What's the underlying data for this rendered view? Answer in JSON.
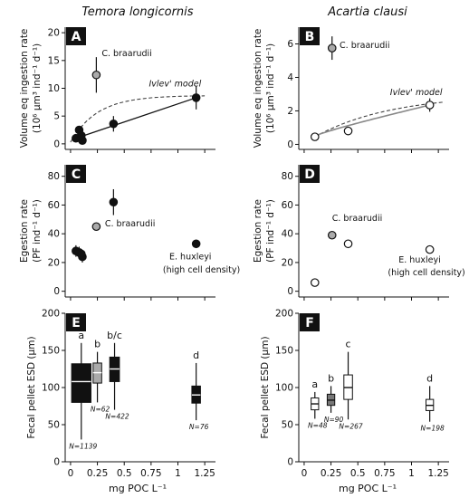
{
  "columns": [
    {
      "title": "Temora longicornis"
    },
    {
      "title": "Acartia clausi"
    }
  ],
  "x_axis": {
    "label": "mg POC L⁻¹",
    "ticks": [
      0,
      0.25,
      0.5,
      0.75,
      1.0,
      1.25
    ],
    "tick_labels": [
      "0",
      "0.25",
      "0.5",
      "0.75",
      "1",
      "1.25"
    ],
    "xlim": [
      -0.05,
      1.35
    ]
  },
  "chart_data": [
    {
      "panel": "A",
      "type": "scatter",
      "ylabel_1": "Volume eq ingestion rate",
      "ylabel_2": "(10⁶ µm³ ind⁻¹ d⁻¹)",
      "ylim": [
        -1,
        21
      ],
      "yticks": [
        0,
        5,
        10,
        15,
        20
      ],
      "points": [
        {
          "x": 0.05,
          "y": 1.0,
          "err": 0,
          "fill": "#111111"
        },
        {
          "x": 0.08,
          "y": 2.5,
          "err": 0.6,
          "fill": "#111111"
        },
        {
          "x": 0.11,
          "y": 0.6,
          "err": 0,
          "fill": "#111111"
        },
        {
          "x": 0.1,
          "y": 1.5,
          "err": 0,
          "fill": "#111111"
        },
        {
          "x": 0.4,
          "y": 3.6,
          "err": 1.4,
          "fill": "#111111"
        },
        {
          "x": 1.17,
          "y": 8.3,
          "err": 2.1,
          "fill": "#111111"
        },
        {
          "x": 0.24,
          "y": 12.4,
          "err": 3.2,
          "fill": "#aaaaaa"
        }
      ],
      "fit_line": [
        [
          0.05,
          1.0
        ],
        [
          1.17,
          8.3
        ]
      ],
      "model_curve": {
        "type": "ivlev",
        "a": 8.7,
        "k": 4.0,
        "x0": 0.0,
        "x1": 1.25,
        "y0": 0.3
      },
      "annotations": [
        {
          "text": "C. braarudii",
          "x": 0.29,
          "y": 15.8,
          "italic": false
        },
        {
          "text": "Ivlev' model",
          "x": 0.73,
          "y": 10.3,
          "italic": true
        }
      ]
    },
    {
      "panel": "B",
      "type": "scatter",
      "ylabel_1": "Volume eq ingestion rate",
      "ylabel_2": "(10⁶ µm³ ind⁻¹ d⁻¹)",
      "ylim": [
        -0.3,
        7
      ],
      "yticks": [
        0,
        2,
        4,
        6
      ],
      "points": [
        {
          "x": 0.1,
          "y": 0.45,
          "err": 0,
          "fill": "#ffffff"
        },
        {
          "x": 0.41,
          "y": 0.8,
          "err": 0,
          "fill": "#ffffff"
        },
        {
          "x": 1.17,
          "y": 2.35,
          "err": 0.4,
          "fill": "#ffffff"
        },
        {
          "x": 0.26,
          "y": 5.75,
          "err": 0.7,
          "fill": "#aaaaaa"
        }
      ],
      "fit_line": [
        [
          0.1,
          0.45
        ],
        [
          1.17,
          2.35
        ]
      ],
      "model_curve": {
        "type": "ivlev",
        "a": 3.0,
        "k": 1.4,
        "x0": 0.1,
        "x1": 1.3,
        "y0": 0.45
      },
      "annotations": [
        {
          "text": "C. braarudii",
          "x": 0.33,
          "y": 5.75,
          "italic": false
        },
        {
          "text": "Ivlev' model",
          "x": 0.8,
          "y": 2.95,
          "italic": true
        }
      ]
    },
    {
      "panel": "C",
      "type": "scatter",
      "ylabel_1": "Egestion rate",
      "ylabel_2": "(PF ind⁻¹ d⁻¹)",
      "ylim": [
        -4,
        88
      ],
      "yticks": [
        0,
        20,
        40,
        60,
        80
      ],
      "points": [
        {
          "x": 0.05,
          "y": 28,
          "err": 4,
          "fill": "#111111"
        },
        {
          "x": 0.08,
          "y": 27,
          "err": 4,
          "fill": "#111111"
        },
        {
          "x": 0.11,
          "y": 24,
          "err": 4,
          "fill": "#111111"
        },
        {
          "x": 0.1,
          "y": 26,
          "err": 3,
          "fill": "#111111"
        },
        {
          "x": 0.4,
          "y": 62,
          "err": 9,
          "fill": "#111111"
        },
        {
          "x": 0.24,
          "y": 45,
          "err": 0,
          "fill": "#aaaaaa"
        },
        {
          "x": 1.17,
          "y": 33,
          "err": 0,
          "fill": "#111111"
        }
      ],
      "annotations": [
        {
          "text": "C. braarudii",
          "x": 0.32,
          "y": 45,
          "italic": false
        },
        {
          "text": "E. huxleyi",
          "x": 0.92,
          "y": 22,
          "italic": false
        },
        {
          "text": "(high cell density)",
          "x": 0.86,
          "y": 13,
          "italic": false
        }
      ]
    },
    {
      "panel": "D",
      "type": "scatter",
      "ylabel_1": "Egestion rate",
      "ylabel_2": "(PF ind⁻¹ d⁻¹)",
      "ylim": [
        -4,
        88
      ],
      "yticks": [
        0,
        20,
        40,
        60,
        80
      ],
      "points": [
        {
          "x": 0.1,
          "y": 6,
          "err": 0,
          "fill": "#ffffff"
        },
        {
          "x": 0.26,
          "y": 39,
          "err": 0,
          "fill": "#aaaaaa"
        },
        {
          "x": 0.41,
          "y": 33,
          "err": 0,
          "fill": "#ffffff"
        },
        {
          "x": 1.17,
          "y": 29,
          "err": 0,
          "fill": "#ffffff"
        }
      ],
      "annotations": [
        {
          "text": "C. braarudii",
          "x": 0.26,
          "y": 49,
          "italic": false
        },
        {
          "text": "E. huxleyi",
          "x": 0.88,
          "y": 20,
          "italic": false
        },
        {
          "text": "(high cell density)",
          "x": 0.78,
          "y": 11,
          "italic": false
        }
      ]
    },
    {
      "panel": "E",
      "type": "box",
      "ylabel_1": "Fecal pellet ESD (µm)",
      "ylim": [
        0,
        200
      ],
      "yticks": [
        0,
        50,
        100,
        150,
        200
      ],
      "boxes": [
        {
          "x": 0.1,
          "width": 0.18,
          "q1": 80,
          "median": 108,
          "q3": 132,
          "wlo": 30,
          "whi": 160,
          "fill": "#111111",
          "median_color": "#ffffff",
          "sig": "a",
          "n": "N=1139"
        },
        {
          "x": 0.25,
          "width": 0.08,
          "q1": 106,
          "median": 120,
          "q3": 133,
          "wlo": 80,
          "whi": 148,
          "fill": "#aaaaaa",
          "median_color": "#ffffff",
          "sig": "b",
          "n": "N=62"
        },
        {
          "x": 0.41,
          "width": 0.09,
          "q1": 108,
          "median": 125,
          "q3": 141,
          "wlo": 70,
          "whi": 160,
          "fill": "#111111",
          "median_color": "#ffffff",
          "sig": "b/c",
          "n": "N=422"
        },
        {
          "x": 1.17,
          "width": 0.08,
          "q1": 79,
          "median": 90,
          "q3": 102,
          "wlo": 56,
          "whi": 133,
          "fill": "#111111",
          "median_color": "#ffffff",
          "sig": "d",
          "n": "N=76"
        }
      ]
    },
    {
      "panel": "F",
      "type": "box",
      "ylabel_1": "Fecal pellet ESD (µm)",
      "ylim": [
        0,
        200
      ],
      "yticks": [
        0,
        50,
        100,
        150,
        200
      ],
      "boxes": [
        {
          "x": 0.1,
          "width": 0.07,
          "q1": 70,
          "median": 78,
          "q3": 86,
          "wlo": 58,
          "whi": 94,
          "fill": "#ffffff",
          "median_color": "#111111",
          "sig": "a",
          "n": "N=48"
        },
        {
          "x": 0.25,
          "width": 0.07,
          "q1": 76,
          "median": 83,
          "q3": 91,
          "wlo": 66,
          "whi": 102,
          "fill": "#777777",
          "median_color": "#111111",
          "sig": "b",
          "n": "N=90"
        },
        {
          "x": 0.41,
          "width": 0.08,
          "q1": 84,
          "median": 100,
          "q3": 117,
          "wlo": 57,
          "whi": 148,
          "fill": "#ffffff",
          "median_color": "#111111",
          "sig": "c",
          "n": "N=267"
        },
        {
          "x": 1.17,
          "width": 0.07,
          "q1": 69,
          "median": 76,
          "q3": 84,
          "wlo": 54,
          "whi": 102,
          "fill": "#ffffff",
          "median_color": "#111111",
          "sig": "d",
          "n": "N=198"
        }
      ]
    }
  ]
}
